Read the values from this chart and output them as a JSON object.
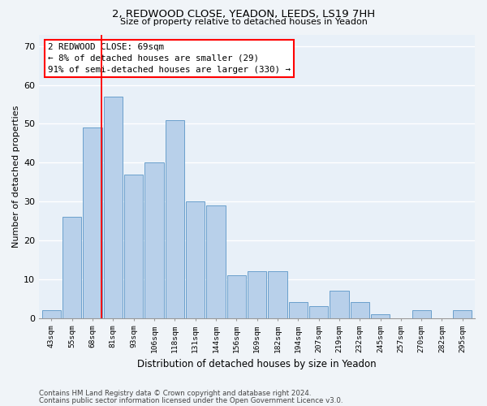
{
  "title1": "2, REDWOOD CLOSE, YEADON, LEEDS, LS19 7HH",
  "title2": "Size of property relative to detached houses in Yeadon",
  "xlabel": "Distribution of detached houses by size in Yeadon",
  "ylabel": "Number of detached properties",
  "categories": [
    "43sqm",
    "55sqm",
    "68sqm",
    "81sqm",
    "93sqm",
    "106sqm",
    "118sqm",
    "131sqm",
    "144sqm",
    "156sqm",
    "169sqm",
    "182sqm",
    "194sqm",
    "207sqm",
    "219sqm",
    "232sqm",
    "245sqm",
    "257sqm",
    "270sqm",
    "282sqm",
    "295sqm"
  ],
  "values": [
    2,
    26,
    49,
    57,
    37,
    40,
    51,
    30,
    29,
    11,
    12,
    12,
    4,
    3,
    7,
    4,
    1,
    0,
    2,
    0,
    2
  ],
  "bar_color": "#b8d0ea",
  "bar_edge_color": "#6aa0cc",
  "annotation_text": "2 REDWOOD CLOSE: 69sqm\n← 8% of detached houses are smaller (29)\n91% of semi-detached houses are larger (330) →",
  "ylim": [
    0,
    73
  ],
  "yticks": [
    0,
    10,
    20,
    30,
    40,
    50,
    60,
    70
  ],
  "fig_bg_color": "#f0f4f8",
  "plot_bg_color": "#e8f0f8",
  "grid_color": "#ffffff",
  "footer1": "Contains HM Land Registry data © Crown copyright and database right 2024.",
  "footer2": "Contains public sector information licensed under the Open Government Licence v3.0."
}
